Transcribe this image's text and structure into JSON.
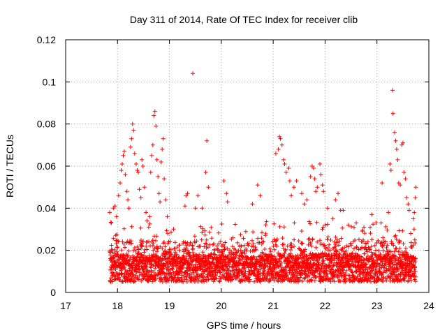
{
  "chart_data": {
    "type": "scatter",
    "title": "Day 311 of 2014, Rate Of TEC Index for receiver clib",
    "xlabel": "GPS time / hours",
    "ylabel": "ROTI / TECUs",
    "xlim": [
      17,
      24
    ],
    "ylim": [
      0,
      0.12
    ],
    "x_ticks": [
      "17",
      "18",
      "19",
      "20",
      "21",
      "22",
      "23",
      "24"
    ],
    "y_ticks": [
      "0",
      "0.02",
      "0.04",
      "0.06",
      "0.08",
      "0.1",
      "0.12"
    ],
    "grid": true,
    "marker": "+",
    "color": "#ff0000",
    "series": [
      {
        "name": "ROTI",
        "points": [
          [
            17.85,
            0.038
          ],
          [
            17.88,
            0.033
          ],
          [
            17.92,
            0.04
          ],
          [
            17.95,
            0.041
          ],
          [
            17.98,
            0.036
          ],
          [
            18.02,
            0.046
          ],
          [
            18.05,
            0.052
          ],
          [
            18.07,
            0.058
          ],
          [
            18.09,
            0.061
          ],
          [
            18.11,
            0.065
          ],
          [
            18.13,
            0.067
          ],
          [
            18.15,
            0.056
          ],
          [
            18.18,
            0.048
          ],
          [
            18.2,
            0.044
          ],
          [
            18.22,
            0.04
          ],
          [
            18.25,
            0.069
          ],
          [
            18.27,
            0.073
          ],
          [
            18.29,
            0.08
          ],
          [
            18.31,
            0.077
          ],
          [
            18.33,
            0.066
          ],
          [
            18.36,
            0.061
          ],
          [
            18.38,
            0.058
          ],
          [
            18.4,
            0.057
          ],
          [
            18.42,
            0.049
          ],
          [
            18.45,
            0.045
          ],
          [
            18.47,
            0.063
          ],
          [
            18.49,
            0.06
          ],
          [
            18.52,
            0.05
          ],
          [
            18.55,
            0.038
          ],
          [
            18.57,
            0.034
          ],
          [
            18.6,
            0.031
          ],
          [
            18.62,
            0.036
          ],
          [
            18.64,
            0.057
          ],
          [
            18.66,
            0.065
          ],
          [
            18.68,
            0.07
          ],
          [
            18.7,
            0.084
          ],
          [
            18.72,
            0.086
          ],
          [
            18.74,
            0.079
          ],
          [
            18.76,
            0.063
          ],
          [
            18.78,
            0.055
          ],
          [
            18.8,
            0.047
          ],
          [
            18.82,
            0.043
          ],
          [
            18.84,
            0.062
          ],
          [
            18.86,
            0.068
          ],
          [
            18.88,
            0.073
          ],
          [
            18.9,
            0.054
          ],
          [
            18.93,
            0.044
          ],
          [
            18.96,
            0.036
          ],
          [
            19.3,
            0.041
          ],
          [
            19.32,
            0.046
          ],
          [
            19.35,
            0.047
          ],
          [
            19.45,
            0.104
          ],
          [
            19.5,
            0.04
          ],
          [
            19.55,
            0.046
          ],
          [
            19.63,
            0.04
          ],
          [
            19.7,
            0.057
          ],
          [
            19.72,
            0.072
          ],
          [
            19.75,
            0.05
          ],
          [
            20.05,
            0.053
          ],
          [
            20.1,
            0.047
          ],
          [
            20.12,
            0.043
          ],
          [
            20.6,
            0.042
          ],
          [
            20.7,
            0.051
          ],
          [
            20.75,
            0.046
          ],
          [
            21.05,
            0.066
          ],
          [
            21.1,
            0.068
          ],
          [
            21.12,
            0.074
          ],
          [
            21.14,
            0.073
          ],
          [
            21.17,
            0.07
          ],
          [
            21.2,
            0.063
          ],
          [
            21.22,
            0.061
          ],
          [
            21.25,
            0.057
          ],
          [
            21.3,
            0.059
          ],
          [
            21.32,
            0.053
          ],
          [
            21.35,
            0.046
          ],
          [
            21.4,
            0.05
          ],
          [
            21.45,
            0.053
          ],
          [
            21.55,
            0.047
          ],
          [
            21.6,
            0.042
          ],
          [
            21.65,
            0.044
          ],
          [
            21.72,
            0.055
          ],
          [
            21.75,
            0.06
          ],
          [
            21.78,
            0.059
          ],
          [
            21.8,
            0.054
          ],
          [
            21.82,
            0.048
          ],
          [
            21.85,
            0.05
          ],
          [
            21.9,
            0.061
          ],
          [
            21.92,
            0.056
          ],
          [
            21.95,
            0.051
          ],
          [
            21.97,
            0.048
          ],
          [
            22.05,
            0.04
          ],
          [
            22.15,
            0.035
          ],
          [
            22.2,
            0.044
          ],
          [
            22.25,
            0.047
          ],
          [
            22.3,
            0.039
          ],
          [
            22.35,
            0.039
          ],
          [
            22.45,
            0.032
          ],
          [
            22.6,
            0.033
          ],
          [
            22.75,
            0.031
          ],
          [
            22.9,
            0.037
          ],
          [
            23.1,
            0.052
          ],
          [
            23.22,
            0.038
          ],
          [
            23.25,
            0.061
          ],
          [
            23.27,
            0.058
          ],
          [
            23.3,
            0.096
          ],
          [
            23.31,
            0.085
          ],
          [
            23.34,
            0.076
          ],
          [
            23.36,
            0.072
          ],
          [
            23.38,
            0.068
          ],
          [
            23.4,
            0.063
          ],
          [
            23.42,
            0.052
          ],
          [
            23.45,
            0.051
          ],
          [
            23.48,
            0.07
          ],
          [
            23.5,
            0.071
          ],
          [
            23.52,
            0.057
          ],
          [
            23.55,
            0.054
          ],
          [
            23.57,
            0.045
          ],
          [
            23.6,
            0.042
          ],
          [
            23.62,
            0.039
          ],
          [
            23.65,
            0.028
          ],
          [
            23.7,
            0.035
          ],
          [
            23.72,
            0.038
          ],
          [
            23.74,
            0.045
          ],
          [
            23.75,
            0.05
          ]
        ]
      }
    ]
  }
}
